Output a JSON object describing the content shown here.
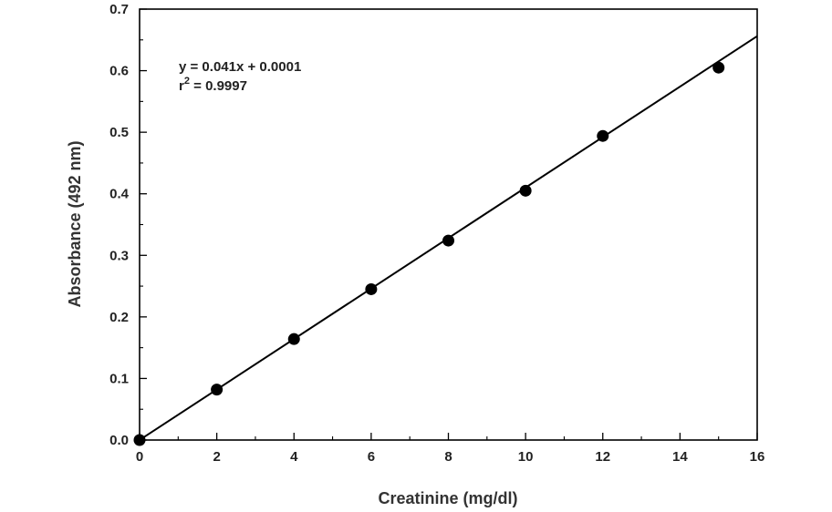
{
  "chart_data": {
    "type": "scatter",
    "title": "",
    "xlabel": "Creatinine (mg/dl)",
    "ylabel": "Absorbance (492 nm)",
    "xlim": [
      0,
      16
    ],
    "ylim": [
      0,
      0.7
    ],
    "x_ticks": [
      0,
      2,
      4,
      6,
      8,
      10,
      12,
      14,
      16
    ],
    "y_ticks": [
      0.0,
      0.1,
      0.2,
      0.3,
      0.4,
      0.5,
      0.6,
      0.7
    ],
    "x_tick_labels": [
      "0",
      "2",
      "4",
      "6",
      "8",
      "10",
      "12",
      "14",
      "16"
    ],
    "y_tick_labels": [
      "0.0",
      "0.1",
      "0.2",
      "0.3",
      "0.4",
      "0.5",
      "0.6",
      "0.7"
    ],
    "points": [
      {
        "x": 0,
        "y": 0.0
      },
      {
        "x": 2,
        "y": 0.082
      },
      {
        "x": 4,
        "y": 0.164
      },
      {
        "x": 6,
        "y": 0.245
      },
      {
        "x": 8,
        "y": 0.324
      },
      {
        "x": 10,
        "y": 0.405
      },
      {
        "x": 12,
        "y": 0.494
      },
      {
        "x": 15,
        "y": 0.605
      }
    ],
    "fit": {
      "slope": 0.041,
      "intercept": 0.0001
    },
    "annotation": {
      "equation": "y = 0.041x + 0.0001",
      "r2_prefix": "r",
      "r2_superscript": "2",
      "r2_value": " = 0.9997"
    },
    "grid": false
  }
}
